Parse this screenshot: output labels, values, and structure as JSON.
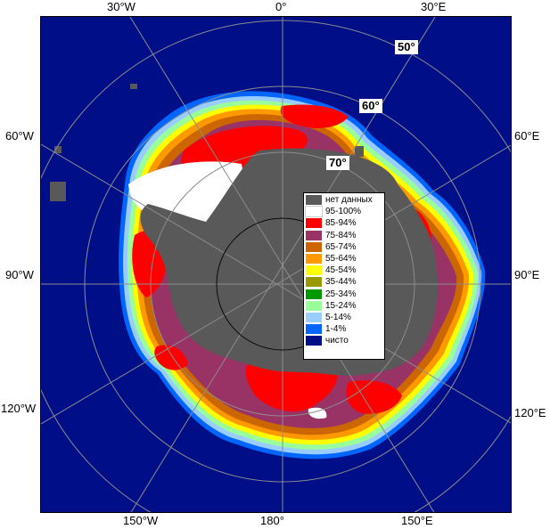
{
  "map": {
    "colors": {
      "ocean": "#000f88",
      "land": "#595959",
      "graticule": "#8c8c8c"
    }
  },
  "edge_labels": {
    "top_30w": "30°W",
    "top_0": "0°",
    "top_30e": "30°E",
    "left_60w": "60°W",
    "left_90w": "90°W",
    "left_120w": "120°W",
    "right_60e": "60°E",
    "right_90e": "90°E",
    "right_120e": "120°E",
    "bottom_150w": "150°W",
    "bottom_180": "180°",
    "bottom_150e": "150°E"
  },
  "lat_labels": {
    "lat_50": "50°",
    "lat_60": "60°",
    "lat_70": "70°"
  },
  "legend": {
    "items": [
      {
        "label": "нет данных",
        "color": "#595959"
      },
      {
        "label": "95-100%",
        "color": "#ffffff"
      },
      {
        "label": "85-94%",
        "color": "#ff0000"
      },
      {
        "label": "75-84%",
        "color": "#993366"
      },
      {
        "label": "65-74%",
        "color": "#cc6600"
      },
      {
        "label": "55-64%",
        "color": "#ff9900"
      },
      {
        "label": "45-54%",
        "color": "#ffff00"
      },
      {
        "label": "35-44%",
        "color": "#999900"
      },
      {
        "label": "25-34%",
        "color": "#009900"
      },
      {
        "label": "15-24%",
        "color": "#99ff99"
      },
      {
        "label": "5-14%",
        "color": "#99ccff"
      },
      {
        "label": "1-4%",
        "color": "#0066ff"
      },
      {
        "label": "чисто",
        "color": "#000f88"
      }
    ]
  }
}
